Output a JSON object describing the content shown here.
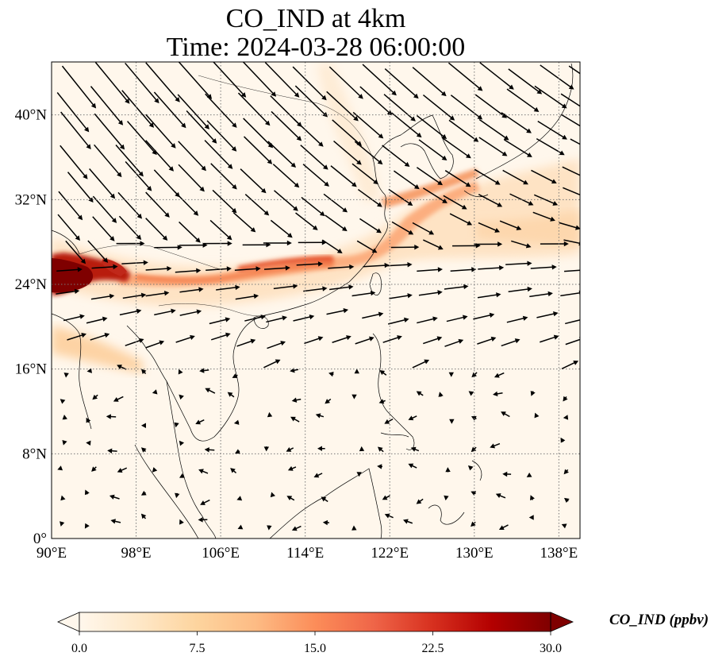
{
  "figure": {
    "title_line1": "CO_IND at 4km",
    "title_line2": "Time: 2024-03-28 06:00:00"
  },
  "map": {
    "lon_range": [
      90,
      140
    ],
    "lat_range": [
      0,
      45
    ],
    "lon_ticks": [
      {
        "value": 90,
        "label": "90°E"
      },
      {
        "value": 98,
        "label": "98°E"
      },
      {
        "value": 106,
        "label": "106°E"
      },
      {
        "value": 114,
        "label": "114°E"
      },
      {
        "value": 122,
        "label": "122°E"
      },
      {
        "value": 130,
        "label": "130°E"
      },
      {
        "value": 138,
        "label": "138°E"
      }
    ],
    "lat_ticks": [
      {
        "value": 0,
        "label": "0°"
      },
      {
        "value": 8,
        "label": "8°N"
      },
      {
        "value": 16,
        "label": "16°N"
      },
      {
        "value": 24,
        "label": "24°N"
      },
      {
        "value": 32,
        "label": "32°N"
      },
      {
        "value": 40,
        "label": "40°N"
      }
    ],
    "gridlines": "dotted",
    "field": {
      "variable": "CO_IND",
      "colormap": "OrRd",
      "hotspots": [
        {
          "lon": 92.5,
          "lat": 25,
          "value": 30
        },
        {
          "lon": 95.5,
          "lat": 25.5,
          "value": 24
        },
        {
          "lon": 104,
          "lat": 24.7,
          "value": 14
        },
        {
          "lon": 112,
          "lat": 26.3,
          "value": 13
        },
        {
          "lon": 117,
          "lat": 26.8,
          "value": 14
        },
        {
          "lon": 122,
          "lat": 29.5,
          "value": 11
        },
        {
          "lon": 125,
          "lat": 31.5,
          "value": 10
        },
        {
          "lon": 92,
          "lat": 18.5,
          "value": 8
        },
        {
          "lon": 135,
          "lat": 29,
          "value": 5
        }
      ]
    },
    "wind_vectors": "black arrows showing horizontal wind at 4km"
  },
  "colorbar": {
    "title": "CO_IND (ppbv)",
    "min": 0.0,
    "max": 30.0,
    "extend": "both",
    "ticks": [
      "0.0",
      "7.5",
      "15.0",
      "22.5",
      "30.0"
    ],
    "colors": [
      "#fff7ec",
      "#fee8c8",
      "#fdd49e",
      "#fdbb84",
      "#fc8d59",
      "#ef6548",
      "#d7301f",
      "#b30000",
      "#7f0000"
    ]
  }
}
